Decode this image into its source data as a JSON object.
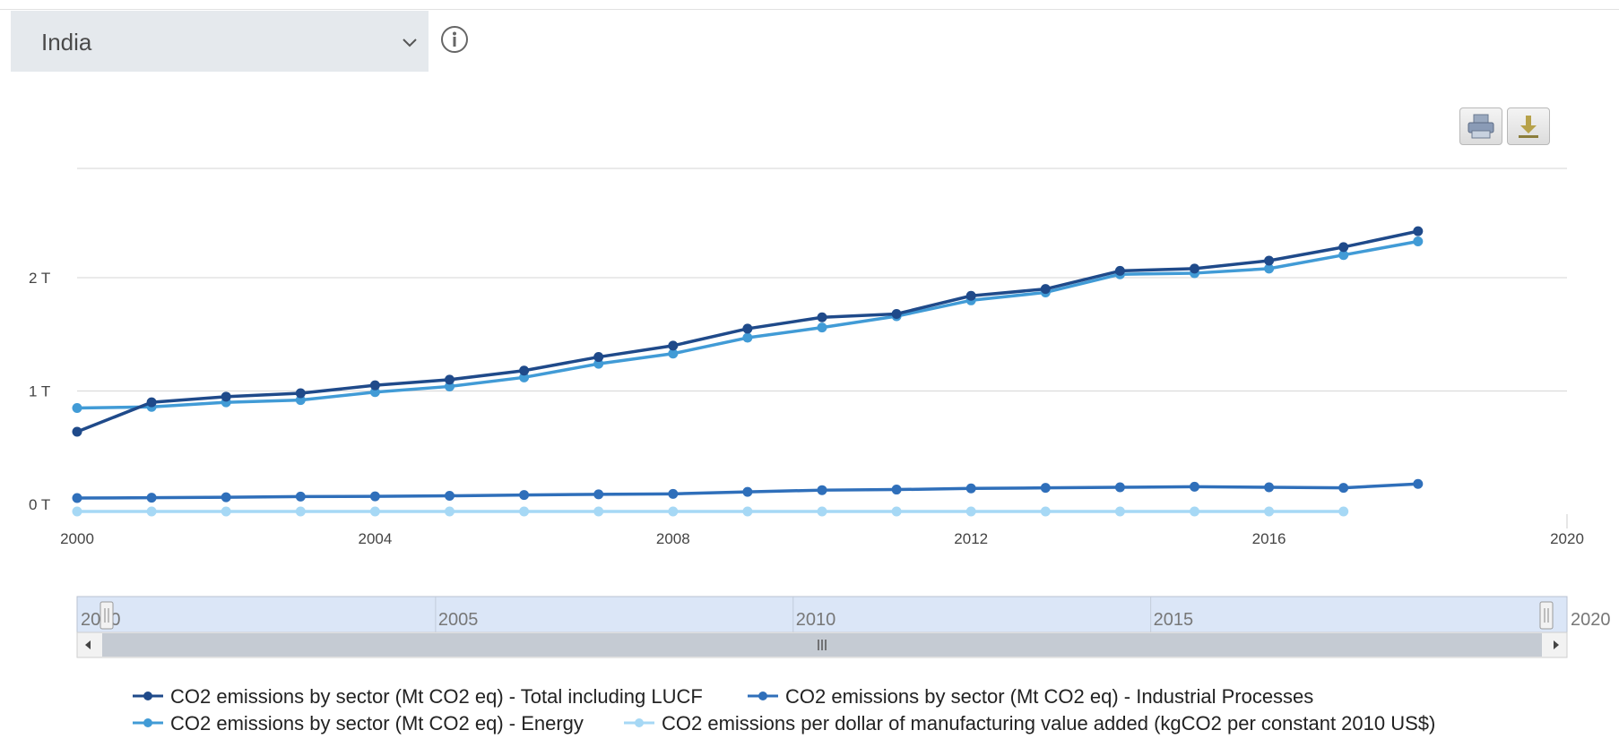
{
  "selector": {
    "value": "India"
  },
  "toolbar": {
    "print": "print-icon",
    "download": "download-icon",
    "info": "info-icon"
  },
  "colors": {
    "total": "#1f4a8a",
    "industrial": "#2f6fba",
    "energy": "#419bd6",
    "per_dollar": "#a6d8f5",
    "grid": "#d6d6d6",
    "navigator_fill": "#dbe6f7"
  },
  "chart_data": {
    "type": "line",
    "title": "",
    "xlabel": "",
    "ylabel": "",
    "xlim": [
      2000,
      2020
    ],
    "ylim": [
      0,
      3000
    ],
    "yticks": [
      {
        "value": 0,
        "label": "0 T"
      },
      {
        "value": 1000,
        "label": "1 T"
      },
      {
        "value": 2000,
        "label": "2 T"
      }
    ],
    "xticks": [
      "2000",
      "2004",
      "2008",
      "2012",
      "2016",
      "2020"
    ],
    "grid": true,
    "legend_position": "bottom",
    "series": [
      {
        "name": "CO2 emissions by sector (Mt CO2 eq) - Total including LUCF",
        "color": "#1f4a8a",
        "x": [
          2000,
          2001,
          2002,
          2003,
          2004,
          2005,
          2006,
          2007,
          2008,
          2009,
          2010,
          2011,
          2012,
          2013,
          2014,
          2015,
          2016,
          2017,
          2018
        ],
        "values": [
          640,
          900,
          950,
          980,
          1050,
          1100,
          1180,
          1300,
          1400,
          1550,
          1650,
          1680,
          1840,
          1900,
          2060,
          2080,
          2150,
          2270,
          2410
        ]
      },
      {
        "name": "CO2 emissions by sector (Mt CO2 eq) - Industrial Processes",
        "color": "#2f6fba",
        "x": [
          2000,
          2001,
          2002,
          2003,
          2004,
          2005,
          2006,
          2007,
          2008,
          2009,
          2010,
          2011,
          2012,
          2013,
          2014,
          2015,
          2016,
          2017,
          2018
        ],
        "values": [
          55,
          58,
          62,
          68,
          70,
          75,
          82,
          88,
          92,
          110,
          125,
          130,
          140,
          145,
          150,
          155,
          150,
          145,
          180
        ]
      },
      {
        "name": "CO2 emissions by sector (Mt CO2 eq) - Energy",
        "color": "#419bd6",
        "x": [
          2000,
          2001,
          2002,
          2003,
          2004,
          2005,
          2006,
          2007,
          2008,
          2009,
          2010,
          2011,
          2012,
          2013,
          2014,
          2015,
          2016,
          2017,
          2018
        ],
        "values": [
          850,
          860,
          900,
          920,
          990,
          1040,
          1120,
          1240,
          1330,
          1470,
          1560,
          1660,
          1800,
          1870,
          2030,
          2040,
          2080,
          2200,
          2320
        ]
      },
      {
        "name": "CO2 emissions per dollar of manufacturing value added (kgCO2 per constant 2010 US$)",
        "color": "#a6d8f5",
        "x": [
          2000,
          2001,
          2002,
          2003,
          2004,
          2005,
          2006,
          2007,
          2008,
          2009,
          2010,
          2011,
          2012,
          2013,
          2014,
          2015,
          2016,
          2017
        ],
        "values": [
          1,
          1,
          1,
          1,
          1,
          1,
          1,
          1,
          1,
          1,
          1,
          1,
          1,
          1,
          1,
          1,
          1,
          1
        ]
      }
    ],
    "navigator": {
      "range": [
        2000,
        2020
      ],
      "labels": [
        "2000",
        "2005",
        "2010",
        "2015",
        "2020"
      ]
    }
  }
}
